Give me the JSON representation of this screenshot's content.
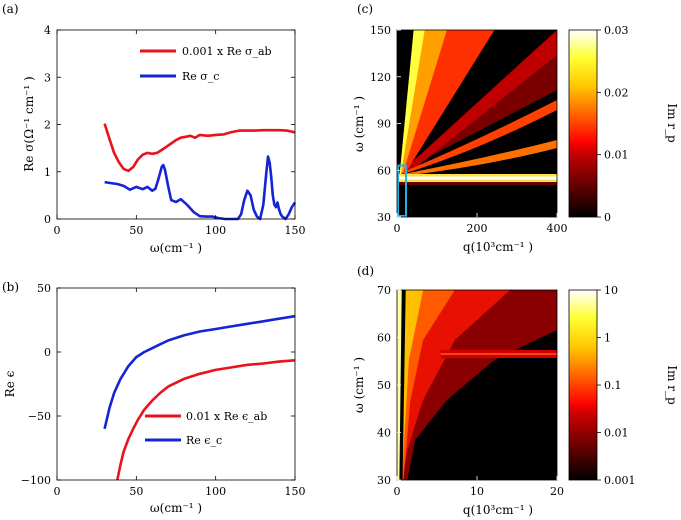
{
  "charts": {
    "a": {
      "panel_label": "(a)",
      "xlabel": "ω(cm⁻¹ )",
      "ylabel": "Re σ(Ω⁻¹ cm⁻¹ )",
      "legend": [
        {
          "label": "0.001 x Re σ_ab",
          "color": "#e8131b"
        },
        {
          "label": "Re σ_c",
          "color": "#1524d4"
        }
      ]
    },
    "b": {
      "panel_label": "(b)",
      "xlabel": "ω(cm⁻¹ )",
      "ylabel": "Re ϵ",
      "legend": [
        {
          "label": "0.01 x Re ϵ_ab",
          "color": "#e8131b"
        },
        {
          "label": "Re ϵ_c",
          "color": "#1524d4"
        }
      ]
    },
    "c": {
      "panel_label": "(c)",
      "xlabel": "q(10³cm⁻¹ )",
      "ylabel": "ω (cm⁻¹ )",
      "colorbar_label": "Im r_p"
    },
    "d": {
      "panel_label": "(d)",
      "xlabel": "q(10³cm⁻¹ )",
      "ylabel": "ω (cm⁻¹ )",
      "colorbar_label": "Im r_p"
    }
  },
  "chart_data": [
    {
      "id": "a",
      "type": "line",
      "xlim": [
        0,
        150
      ],
      "ylim": [
        0,
        4
      ],
      "xticks": [
        "0",
        "50",
        "100",
        "150"
      ],
      "yticks": [
        "0",
        "1",
        "2",
        "3",
        "4"
      ],
      "grid": false,
      "legend_position": "top-right",
      "series": [
        {
          "name": "0.001 x Re σ_ab",
          "color": "#e8131b",
          "x": [
            30,
            33,
            36,
            39,
            42,
            45,
            48,
            51,
            54,
            57,
            60,
            63,
            66,
            69,
            72,
            75,
            78,
            81,
            84,
            87,
            90,
            95,
            100,
            105,
            110,
            115,
            120,
            125,
            130,
            135,
            140,
            145,
            148,
            150
          ],
          "y": [
            2.02,
            1.7,
            1.4,
            1.2,
            1.06,
            1.02,
            1.1,
            1.26,
            1.36,
            1.4,
            1.38,
            1.4,
            1.46,
            1.53,
            1.6,
            1.67,
            1.72,
            1.74,
            1.76,
            1.72,
            1.78,
            1.76,
            1.78,
            1.79,
            1.84,
            1.87,
            1.87,
            1.87,
            1.88,
            1.88,
            1.88,
            1.87,
            1.85,
            1.83
          ]
        },
        {
          "name": "Re σ_c",
          "color": "#1524d4",
          "x": [
            30,
            34,
            38,
            42,
            46,
            50,
            54,
            57,
            60,
            62,
            64,
            66,
            67,
            68,
            70,
            72,
            75,
            78,
            82,
            86,
            90,
            94,
            98,
            102,
            106,
            110,
            114,
            116,
            118,
            120,
            122,
            124,
            126,
            128,
            130,
            132,
            133,
            134,
            135,
            136,
            137,
            138,
            139,
            140,
            141,
            142,
            144,
            146,
            148,
            150
          ],
          "y": [
            0.78,
            0.76,
            0.74,
            0.7,
            0.62,
            0.68,
            0.63,
            0.68,
            0.6,
            0.64,
            0.85,
            1.1,
            1.14,
            1.05,
            0.7,
            0.4,
            0.36,
            0.42,
            0.3,
            0.15,
            0.06,
            0.05,
            0.05,
            0.02,
            0.0,
            0.0,
            0.0,
            0.1,
            0.4,
            0.6,
            0.5,
            0.2,
            0.05,
            0.0,
            0.3,
            1.0,
            1.32,
            1.2,
            0.9,
            0.5,
            0.3,
            0.25,
            0.35,
            0.2,
            0.1,
            0.05,
            0.0,
            0.1,
            0.25,
            0.35
          ]
        }
      ]
    },
    {
      "id": "b",
      "type": "line",
      "xlim": [
        0,
        150
      ],
      "ylim": [
        -100,
        50
      ],
      "xticks": [
        "0",
        "50",
        "100",
        "150"
      ],
      "yticks": [
        "−100",
        "−50",
        "0",
        "50"
      ],
      "grid": false,
      "legend_position": "bottom-right",
      "series": [
        {
          "name": "0.01 x Re ϵ_ab",
          "color": "#e8131b",
          "x": [
            38,
            40,
            42,
            45,
            48,
            51,
            55,
            60,
            65,
            70,
            80,
            90,
            100,
            110,
            120,
            130,
            140,
            150
          ],
          "y": [
            -100,
            -88,
            -78,
            -68,
            -60,
            -53,
            -45,
            -38,
            -32,
            -27,
            -21,
            -17,
            -14,
            -12,
            -10,
            -9,
            -7.5,
            -6.5
          ]
        },
        {
          "name": "Re ϵ_c",
          "color": "#1524d4",
          "x": [
            30,
            33,
            36,
            40,
            45,
            50,
            55,
            60,
            65,
            70,
            80,
            90,
            100,
            110,
            120,
            130,
            140,
            150
          ],
          "y": [
            -60,
            -44,
            -32,
            -21,
            -11,
            -4,
            0,
            3,
            6,
            9,
            13,
            16,
            18,
            20,
            22,
            24,
            26,
            28
          ]
        }
      ]
    },
    {
      "id": "c",
      "type": "heatmap",
      "xlim": [
        0,
        400
      ],
      "ylim": [
        30,
        150
      ],
      "xticks": [
        "0",
        "200",
        "400"
      ],
      "yticks": [
        "30",
        "60",
        "90",
        "120",
        "150"
      ],
      "colorbar": {
        "min": 0,
        "max": 0.03,
        "scale": "linear",
        "ticks": [
          "0",
          "0.01",
          "0.02",
          "0.03"
        ]
      },
      "highlight_box": {
        "q": [
          0,
          20
        ],
        "omega": [
          30,
          63
        ],
        "color": "#1fb3e8"
      },
      "band_center_omega": 55,
      "colormap": "hot"
    },
    {
      "id": "d",
      "type": "heatmap",
      "xlim": [
        0,
        20
      ],
      "ylim": [
        30,
        70
      ],
      "xticks": [
        "0",
        "10",
        "20"
      ],
      "yticks": [
        "30",
        "40",
        "50",
        "60",
        "70"
      ],
      "colorbar": {
        "min": 0.001,
        "max": 10,
        "scale": "log",
        "ticks": [
          "0.001",
          "0.01",
          "0.1",
          "1",
          "10"
        ]
      },
      "band_center_omega": 55,
      "colormap": "hot"
    }
  ]
}
